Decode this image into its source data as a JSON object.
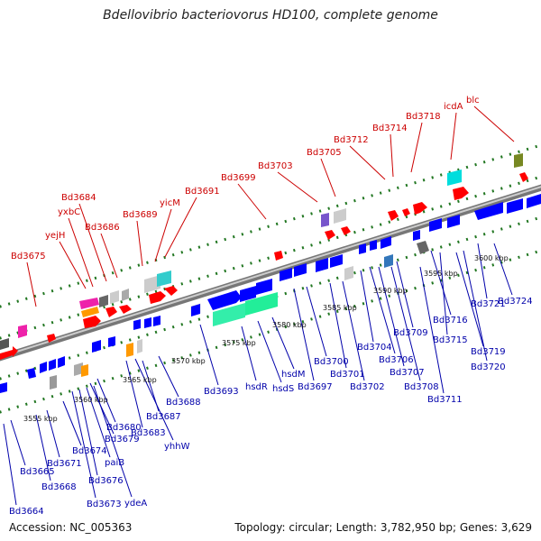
{
  "title": "Bdellovibrio bacteriovorus HD100, complete genome",
  "footer": {
    "accession": "Accession: NC_005363",
    "topology": "Topology: circular; Length: 3,782,950 bp; Genes: 3,629"
  },
  "colors": {
    "label_top": "#cc0000",
    "label_bottom": "#0000aa",
    "forward_gene": "#ff0000",
    "reverse_gene": "#0000ff",
    "backbone": "#888888",
    "tick": "#227722"
  },
  "scale_labels": [
    "3555 kbp",
    "3560 kbp",
    "3565 kbp",
    "3570 kbp",
    "3575 kbp",
    "3580 kbp",
    "3585 kbp",
    "3590 kbp",
    "3595 kbp",
    "3600 kbp"
  ],
  "top_labels": [
    "Bd3675",
    "yejH",
    "yxbC",
    "Bd3684",
    "Bd3686",
    "Bd3689",
    "yicM",
    "Bd3691",
    "Bd3699",
    "Bd3703",
    "Bd3705",
    "Bd3712",
    "Bd3714",
    "Bd3718",
    "icdA",
    "blc"
  ],
  "bottom_labels": [
    "Bd3664",
    "Bd3665",
    "Bd3668",
    "Bd3671",
    "Bd3674",
    "Bd3673",
    "Bd3676",
    "paiB",
    "ydeA",
    "Bd3679",
    "Bd3680",
    "Bd3683",
    "yhhW",
    "Bd3687",
    "Bd3688",
    "Bd3693",
    "hsdR",
    "hsdS",
    "hsdM",
    "Bd3697",
    "Bd3700",
    "Bd3701",
    "Bd3702",
    "Bd3704",
    "Bd3706",
    "Bd3707",
    "Bd3708",
    "Bd3709",
    "Bd3711",
    "Bd3716",
    "Bd3715",
    "Bd3719",
    "Bd3720",
    "Bd3721",
    "Bd3724"
  ]
}
